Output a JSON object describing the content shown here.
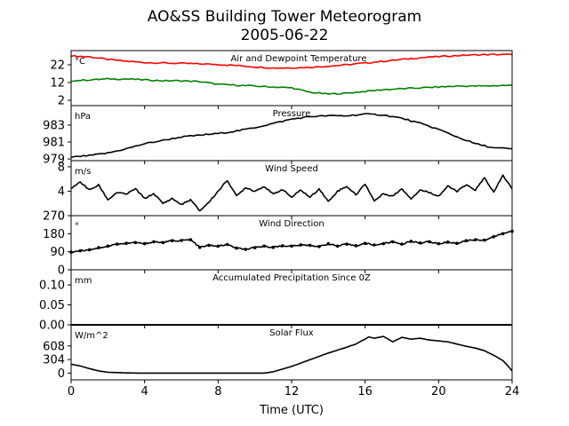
{
  "chart_data": {
    "type": "line",
    "title": "AO&SS Building Tower Meteorogram",
    "subtitle": "2005-06-22",
    "xlabel": "Time (UTC)",
    "xlim": [
      0,
      24
    ],
    "xticks": [
      0,
      4,
      8,
      12,
      16,
      20,
      24
    ],
    "panels": [
      {
        "id": "temp",
        "title": "Air and Dewpoint Temperature",
        "unit": "°C",
        "ylim": [
          -1,
          30
        ],
        "yticks": [
          2,
          12,
          22
        ],
        "series": [
          {
            "color": "#ff0000",
            "x": [
              0,
              1,
              2,
              3,
              4,
              5,
              6,
              7,
              8,
              9,
              10,
              11,
              12,
              13,
              14,
              15,
              16,
              17,
              18,
              19,
              20,
              21,
              22,
              23,
              24
            ],
            "y": [
              27,
              26.5,
              25,
              24,
              23.3,
              23,
              22.8,
              22.5,
              22.2,
              21.6,
              20.8,
              20.2,
              20.3,
              20.6,
              21.2,
              22,
              23,
              24,
              25,
              26,
              26.6,
              27.2,
              27.6,
              27.8,
              27.7
            ]
          },
          {
            "color": "#008000",
            "x": [
              0,
              1,
              2,
              3,
              4,
              5,
              6,
              7,
              8,
              9,
              10,
              11,
              12,
              13,
              14,
              15,
              16,
              17,
              18,
              19,
              20,
              21,
              22,
              23,
              24
            ],
            "y": [
              13,
              13.5,
              14,
              14,
              13.5,
              13,
              13,
              12.5,
              11,
              10.5,
              10,
              9.5,
              9,
              6.5,
              5.5,
              6,
              7,
              8,
              8.5,
              9,
              9.5,
              10,
              10,
              10.2,
              10.5
            ]
          }
        ]
      },
      {
        "id": "pressure",
        "title": "Pressure",
        "unit": "hPa",
        "ylim": [
          978.8,
          985.3
        ],
        "yticks": [
          979,
          981,
          983
        ],
        "series": [
          {
            "color": "#000000",
            "x": [
              0,
              1,
              2,
              3,
              4,
              5,
              6,
              7,
              8,
              9,
              10,
              11,
              12,
              13,
              14,
              15,
              16,
              17,
              18,
              19,
              20,
              21,
              22,
              23,
              24
            ],
            "y": [
              979.2,
              979.4,
              979.7,
              980.2,
              980.8,
              981.2,
              981.6,
              981.8,
              982.0,
              982.3,
              982.7,
              983.2,
              983.7,
              984.0,
              984.1,
              984.1,
              984.3,
              984.2,
              983.8,
              983.2,
              982.5,
              981.6,
              980.8,
              980.3,
              980.2
            ]
          }
        ]
      },
      {
        "id": "wind_speed",
        "title": "Wind Speed",
        "unit": "m/s",
        "ylim": [
          0,
          9
        ],
        "yticks": [
          0,
          4,
          8
        ],
        "series": [
          {
            "color": "#000000",
            "x": [
              0,
              0.5,
              1,
              1.5,
              2,
              2.5,
              3,
              3.5,
              4,
              4.5,
              5,
              5.5,
              6,
              6.5,
              7,
              7.5,
              8,
              8.5,
              9,
              9.5,
              10,
              10.5,
              11,
              11.5,
              12,
              12.5,
              13,
              13.5,
              14,
              14.5,
              15,
              15.5,
              16,
              16.5,
              17,
              17.5,
              18,
              18.5,
              19,
              19.5,
              20,
              20.5,
              21,
              21.5,
              22,
              22.5,
              23,
              23.5,
              24
            ],
            "y": [
              4.5,
              5.5,
              4.2,
              5.0,
              2.6,
              3.8,
              3.5,
              4.4,
              2.8,
              3.6,
              2.0,
              2.8,
              1.8,
              2.6,
              0.8,
              2.2,
              4.0,
              5.8,
              3.2,
              4.6,
              4.0,
              4.8,
              3.5,
              4.3,
              3.0,
              4.2,
              3.0,
              4.4,
              2.3,
              4.0,
              4.8,
              3.4,
              5.2,
              2.4,
              3.6,
              3.2,
              4.4,
              2.8,
              4.2,
              3.8,
              3.2,
              4.8,
              4.0,
              5.0,
              4.2,
              6.2,
              3.8,
              6.6,
              4.4
            ]
          }
        ]
      },
      {
        "id": "wind_dir",
        "title": "Wind Direction",
        "unit": "°",
        "ylim": [
          0,
          270
        ],
        "yticks": [
          0,
          90,
          180,
          270
        ],
        "series": [
          {
            "color": "#000000",
            "markers": true,
            "x": [
              0,
              0.5,
              1,
              1.5,
              2,
              2.5,
              3,
              3.5,
              4,
              4.5,
              5,
              5.5,
              6,
              6.5,
              7,
              7.5,
              8,
              8.5,
              9,
              9.5,
              10,
              10.5,
              11,
              11.5,
              12,
              12.5,
              13,
              13.5,
              14,
              14.5,
              15,
              15.5,
              16,
              16.5,
              17,
              17.5,
              18,
              18.5,
              19,
              19.5,
              20,
              20.5,
              21,
              21.5,
              22,
              22.5,
              23,
              23.5,
              24
            ],
            "y": [
              88,
              95,
              100,
              110,
              118,
              128,
              132,
              136,
              130,
              140,
              136,
              145,
              146,
              150,
              112,
              122,
              118,
              126,
              108,
              102,
              110,
              118,
              112,
              120,
              118,
              124,
              122,
              116,
              130,
              118,
              128,
              120,
              132,
              124,
              130,
              140,
              128,
              142,
              134,
              140,
              130,
              138,
              132,
              145,
              150,
              148,
              165,
              180,
              192
            ]
          }
        ]
      },
      {
        "id": "precip",
        "title": "Accumulated Precipitation Since 0Z",
        "unit": "mm",
        "ylim": [
          0,
          0.138
        ],
        "yticks": [
          0,
          0.05,
          0.1
        ],
        "yticklabels": [
          "0.00",
          "0.05",
          "0.10"
        ],
        "series": [
          {
            "color": "#000000",
            "x": [
              0,
              24
            ],
            "y": [
              0,
              0
            ]
          }
        ]
      },
      {
        "id": "solar",
        "title": "Solar Flux",
        "unit": "W/m^2",
        "ylim": [
          -150,
          1080
        ],
        "yticks": [
          0,
          304,
          608
        ],
        "series": [
          {
            "color": "#000000",
            "x": [
              0,
              0.5,
              1,
              1.5,
              2,
              3,
              4,
              6,
              8,
              9,
              10,
              10.5,
              11,
              12,
              13,
              14,
              15,
              15.5,
              15.8,
              16,
              16.2,
              16.5,
              17,
              17.5,
              18,
              18.5,
              19,
              19.5,
              20,
              20.5,
              21,
              21.5,
              22,
              22.5,
              23,
              23.5,
              23.8,
              24
            ],
            "y": [
              200,
              160,
              100,
              50,
              20,
              5,
              0,
              0,
              0,
              0,
              0,
              0,
              30,
              150,
              300,
              450,
              580,
              650,
              720,
              760,
              810,
              780,
              820,
              700,
              800,
              760,
              780,
              740,
              720,
              700,
              650,
              600,
              560,
              500,
              400,
              280,
              150,
              50
            ]
          }
        ]
      }
    ]
  }
}
